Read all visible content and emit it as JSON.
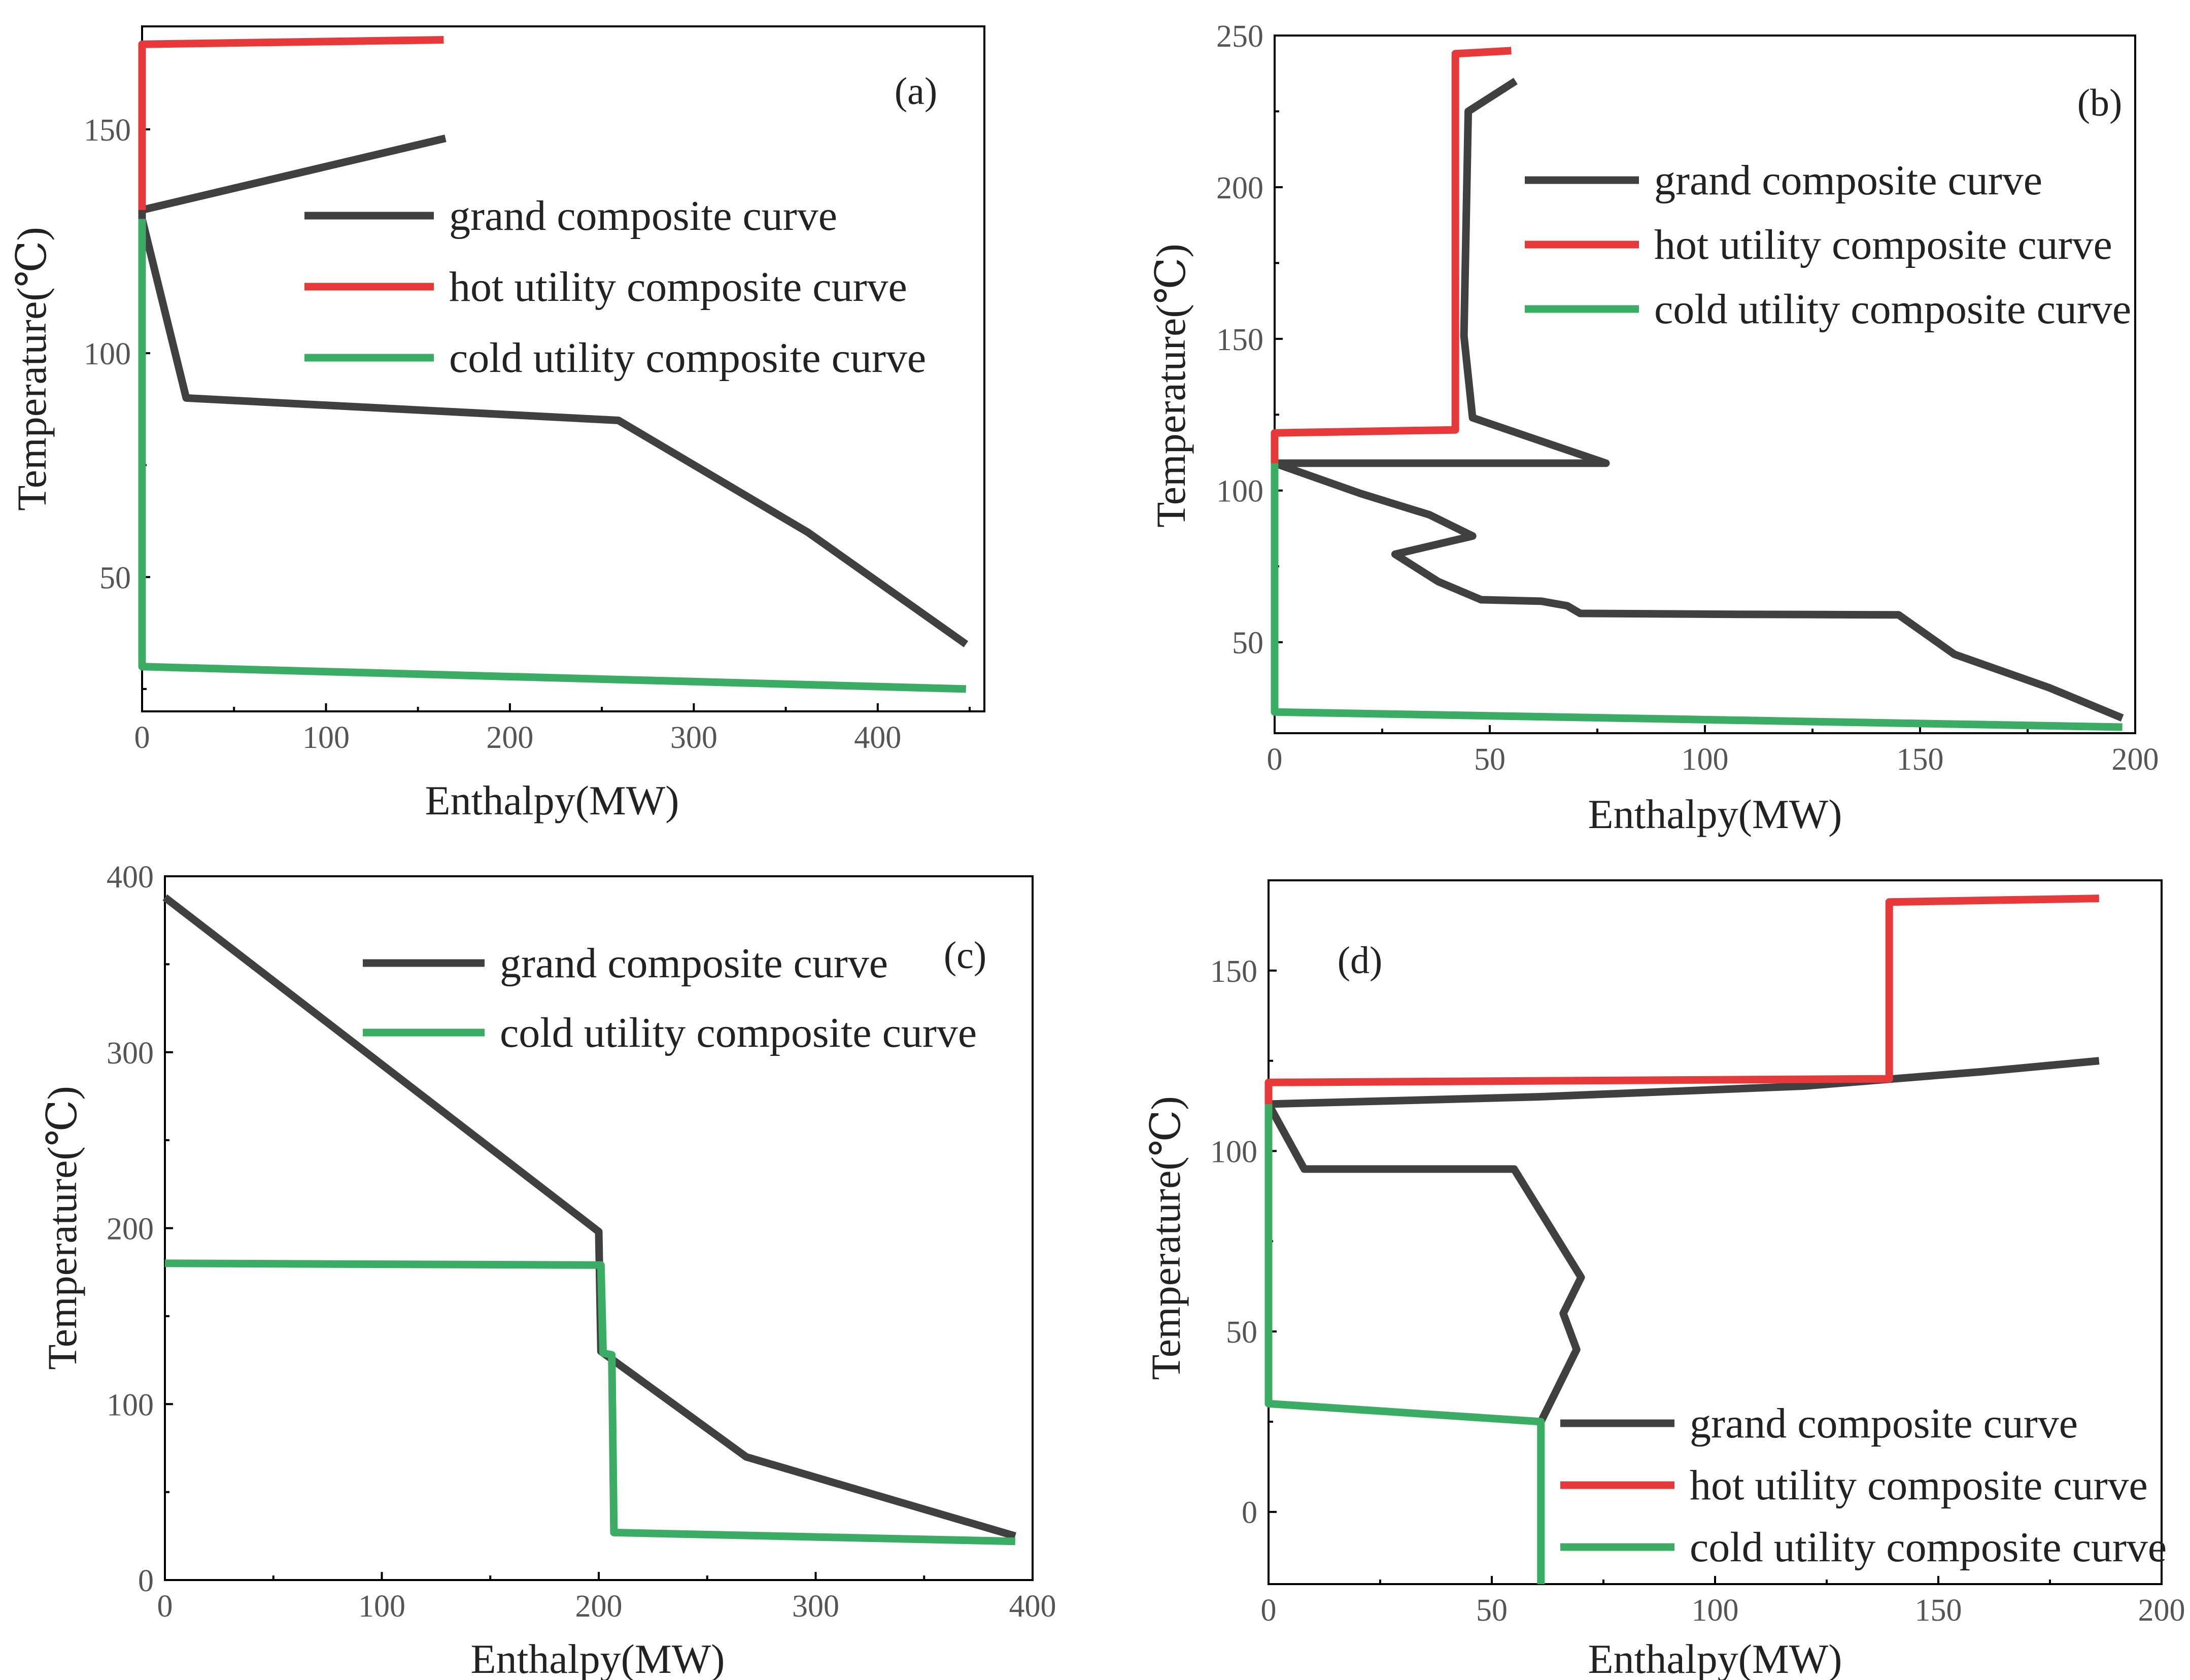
{
  "colors": {
    "grand": "#404040",
    "hot": "#e8393a",
    "cold": "#3aac64"
  },
  "chart_data": [
    {
      "type": "line",
      "panel_label": "(a)",
      "xlabel": "Enthalpy(MW)",
      "ylabel": "Temperature(℃)",
      "xlim": [
        0,
        458
      ],
      "ylim": [
        20,
        173
      ],
      "xticks": [
        0,
        100,
        200,
        300,
        400
      ],
      "yticks": [
        50,
        100,
        150
      ],
      "xminor": [
        50,
        150,
        250,
        350,
        450
      ],
      "yminor": [
        25,
        75,
        125
      ],
      "legend": [
        {
          "name": "grand composite curve",
          "color": "grand"
        },
        {
          "name": "hot utility composite curve",
          "color": "hot"
        },
        {
          "name": "cold utility composite curve",
          "color": "cold"
        }
      ],
      "series": [
        {
          "name": "grand composite curve",
          "color": "grand",
          "points": [
            [
              165,
              148
            ],
            [
              0,
              132
            ],
            [
              0,
              130
            ],
            [
              24,
              90
            ],
            [
              259,
              85
            ],
            [
              362,
              60
            ],
            [
              448,
              35
            ]
          ]
        },
        {
          "name": "hot utility composite curve",
          "color": "hot",
          "points": [
            [
              164,
              170
            ],
            [
              0,
              169
            ],
            [
              0,
              132
            ]
          ]
        },
        {
          "name": "cold utility composite curve",
          "color": "cold",
          "points": [
            [
              0,
              130
            ],
            [
              0,
              30
            ],
            [
              448,
              25
            ]
          ]
        }
      ]
    },
    {
      "type": "line",
      "panel_label": "(b)",
      "xlabel": "Enthalpy(MW)",
      "ylabel": "Temperature(℃)",
      "xlim": [
        0,
        200
      ],
      "ylim": [
        20,
        250
      ],
      "xticks": [
        0,
        50,
        100,
        150,
        200
      ],
      "yticks": [
        50,
        100,
        150,
        200,
        250
      ],
      "xminor": [
        25,
        75,
        125,
        175
      ],
      "yminor": [
        75,
        125,
        175,
        225
      ],
      "legend": [
        {
          "name": "grand composite curve",
          "color": "grand"
        },
        {
          "name": "hot utility composite curve",
          "color": "hot"
        },
        {
          "name": "cold utility composite curve",
          "color": "cold"
        }
      ],
      "series": [
        {
          "name": "grand composite curve",
          "color": "grand",
          "points": [
            [
              56,
              235
            ],
            [
              45,
              225
            ],
            [
              44,
              151
            ],
            [
              46,
              124
            ],
            [
              77,
              109
            ],
            [
              0,
              109
            ],
            [
              20,
              99
            ],
            [
              36,
              92
            ],
            [
              46,
              85
            ],
            [
              28,
              79
            ],
            [
              38,
              70
            ],
            [
              48,
              64
            ],
            [
              62,
              63.5
            ],
            [
              68,
              62
            ],
            [
              71,
              59.5
            ],
            [
              108,
              59.2
            ],
            [
              145,
              59
            ],
            [
              158,
              46
            ],
            [
              180,
              35
            ],
            [
              197,
              25
            ]
          ]
        },
        {
          "name": "hot utility composite curve",
          "color": "hot",
          "points": [
            [
              55,
              245
            ],
            [
              42,
              244
            ],
            [
              42,
              120
            ],
            [
              0,
              119
            ],
            [
              0,
              109
            ]
          ]
        },
        {
          "name": "cold utility composite curve",
          "color": "cold",
          "points": [
            [
              0,
              109
            ],
            [
              0,
              27
            ],
            [
              197,
              22
            ]
          ]
        }
      ]
    },
    {
      "type": "line",
      "panel_label": "(c)",
      "xlabel": "Enthalpy(MW)",
      "ylabel": "Temperature(℃)",
      "xlim": [
        0,
        400
      ],
      "ylim": [
        0,
        400
      ],
      "xticks": [
        0,
        100,
        200,
        300,
        400
      ],
      "yticks": [
        0,
        100,
        200,
        300,
        400
      ],
      "xminor": [
        50,
        150,
        250,
        350
      ],
      "yminor": [
        50,
        150,
        250,
        350
      ],
      "legend": [
        {
          "name": "grand composite curve",
          "color": "grand"
        },
        {
          "name": "cold utility composite curve",
          "color": "cold"
        }
      ],
      "series": [
        {
          "name": "grand composite curve",
          "color": "grand",
          "points": [
            [
              0,
              388
            ],
            [
              200,
              198
            ],
            [
              201,
              130
            ],
            [
              268,
              70
            ],
            [
              392,
              25
            ]
          ]
        },
        {
          "name": "cold utility composite curve",
          "color": "cold",
          "points": [
            [
              0,
              180
            ],
            [
              201,
              179
            ],
            [
              202,
              129
            ],
            [
              206,
              128
            ],
            [
              207,
              27
            ],
            [
              392,
              22
            ]
          ]
        }
      ]
    },
    {
      "type": "line",
      "panel_label": "(d)",
      "xlabel": "Enthalpy(MW)",
      "ylabel": "Temperature(℃)",
      "xlim": [
        0,
        200
      ],
      "ylim": [
        -20,
        175
      ],
      "xticks": [
        0,
        50,
        100,
        150,
        200
      ],
      "yticks": [
        0,
        50,
        100,
        150
      ],
      "xminor": [
        25,
        75,
        125,
        175
      ],
      "yminor": [
        -25,
        25,
        75,
        125,
        175
      ],
      "legend": [
        {
          "name": "grand composite curve",
          "color": "grand"
        },
        {
          "name": "hot utility composite curve",
          "color": "hot"
        },
        {
          "name": "cold utility composite curve",
          "color": "cold"
        }
      ],
      "series": [
        {
          "name": "grand composite curve",
          "color": "grand",
          "points": [
            [
              186,
              125
            ],
            [
              160,
              122
            ],
            [
              120,
              118
            ],
            [
              60,
              115
            ],
            [
              0,
              113
            ],
            [
              8,
              95
            ],
            [
              55,
              95
            ],
            [
              70,
              65
            ],
            [
              66,
              55
            ],
            [
              69,
              45
            ],
            [
              61,
              25
            ]
          ]
        },
        {
          "name": "hot utility composite curve",
          "color": "hot",
          "points": [
            [
              186,
              170
            ],
            [
              139,
              169
            ],
            [
              139,
              120
            ],
            [
              0,
              119
            ],
            [
              0,
              113
            ]
          ]
        },
        {
          "name": "cold utility composite curve",
          "color": "cold",
          "points": [
            [
              0,
              113
            ],
            [
              0,
              30
            ],
            [
              61,
              25
            ],
            [
              61,
              -20
            ]
          ]
        }
      ]
    }
  ]
}
